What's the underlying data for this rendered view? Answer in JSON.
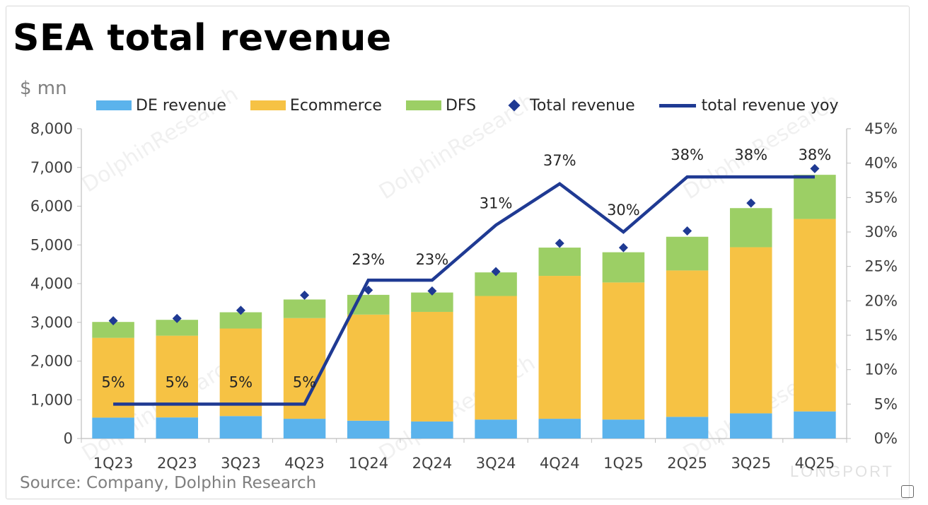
{
  "title": "SEA total revenue",
  "unit_label": "$ mn",
  "source": "Source: Company, Dolphin Research",
  "watermark": "DolphinResearch",
  "brand_watermark": "LONGPORT",
  "legend": {
    "de": "DE revenue",
    "ecommerce": "Ecommerce",
    "dfs": "DFS",
    "total": "Total revenue",
    "yoy": "total revenue yoy"
  },
  "colors": {
    "de": "#5bb3ec",
    "ecommerce": "#f6c244",
    "dfs": "#9ccf65",
    "total": "#1f3a93",
    "yoy": "#1f3a93"
  },
  "chart_data": {
    "type": "bar",
    "stacked": true,
    "categories": [
      "1Q23",
      "2Q23",
      "3Q23",
      "4Q23",
      "1Q24",
      "2Q24",
      "3Q24",
      "4Q24",
      "1Q25",
      "2Q25",
      "3Q25",
      "4Q25"
    ],
    "series": [
      {
        "name": "DE revenue",
        "values": [
          540,
          545,
          580,
          510,
          460,
          440,
          490,
          510,
          490,
          560,
          650,
          700
        ]
      },
      {
        "name": "Ecommerce",
        "values": [
          2060,
          2110,
          2260,
          2600,
          2740,
          2830,
          3190,
          3690,
          3540,
          3780,
          4290,
          4970
        ]
      },
      {
        "name": "DFS",
        "values": [
          410,
          410,
          420,
          480,
          510,
          500,
          610,
          730,
          780,
          870,
          1010,
          1140
        ]
      },
      {
        "name": "Total revenue",
        "type": "scatter",
        "axis": "left",
        "values": [
          3040,
          3100,
          3310,
          3700,
          3830,
          3810,
          4310,
          5040,
          4930,
          5360,
          6080,
          6970
        ]
      },
      {
        "name": "total revenue yoy",
        "type": "line",
        "axis": "right",
        "values": [
          5,
          5,
          5,
          5,
          23,
          23,
          31,
          37,
          30,
          38,
          38,
          38
        ]
      }
    ],
    "ylim": [
      0,
      8000
    ],
    "yticks": [
      "0",
      "1,000",
      "2,000",
      "3,000",
      "4,000",
      "5,000",
      "6,000",
      "7,000",
      "8,000"
    ],
    "y2lim": [
      0,
      45
    ],
    "y2ticks": [
      "0%",
      "5%",
      "10%",
      "15%",
      "20%",
      "25%",
      "30%",
      "35%",
      "40%",
      "45%"
    ],
    "yoy_labels": [
      "5%",
      "5%",
      "5%",
      "5%",
      "23%",
      "23%",
      "31%",
      "37%",
      "30%",
      "38%",
      "38%",
      "38%"
    ],
    "legend_position": "top",
    "grid": false
  }
}
